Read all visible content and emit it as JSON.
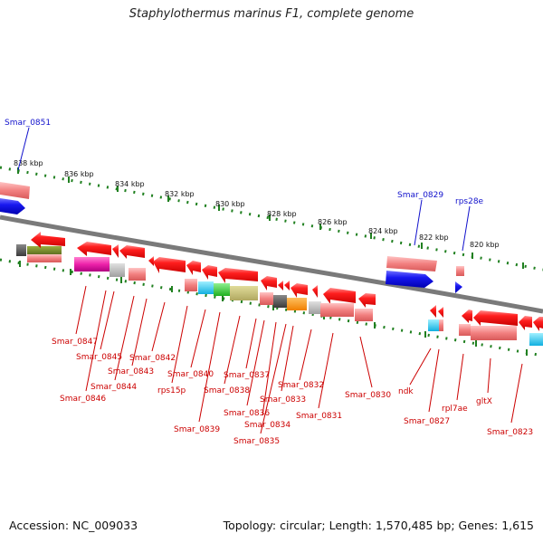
{
  "title": "Staphylothermus marinus F1, complete genome",
  "footer": {
    "accession": "Accession: NC_009033",
    "summary": "Topology: circular; Length: 1,570,485 bp; Genes: 1,615"
  },
  "colors": {
    "gene_red": "#ee1111",
    "label_red": "#cc0000",
    "label_blue": "#1111cc",
    "backbone": "#808080",
    "ruler_green": "#208020",
    "rna_blue": "#1515ee"
  },
  "ruler_ticks": [
    "838 kbp",
    "836 kbp",
    "834 kbp",
    "832 kbp",
    "830 kbp",
    "828 kbp",
    "826 kbp",
    "824 kbp",
    "822 kbp",
    "820 kbp"
  ],
  "upper_labels": [
    "Smar_0851",
    "Smar_0829",
    "rps28e"
  ],
  "lower_labels": [
    "Smar_0847",
    "Smar_0845",
    "Smar_0846",
    "Smar_0844",
    "Smar_0843",
    "Smar_0842",
    "rps15p",
    "Smar_0840",
    "Smar_0839",
    "Smar_0838",
    "Smar_0837",
    "Smar_0836",
    "Smar_0834",
    "Smar_0835",
    "Smar_0833",
    "Smar_0832",
    "Smar_0831",
    "Smar_0830",
    "ndk",
    "Smar_0827",
    "rpl7ae",
    "gltX",
    "Smar_0823"
  ]
}
